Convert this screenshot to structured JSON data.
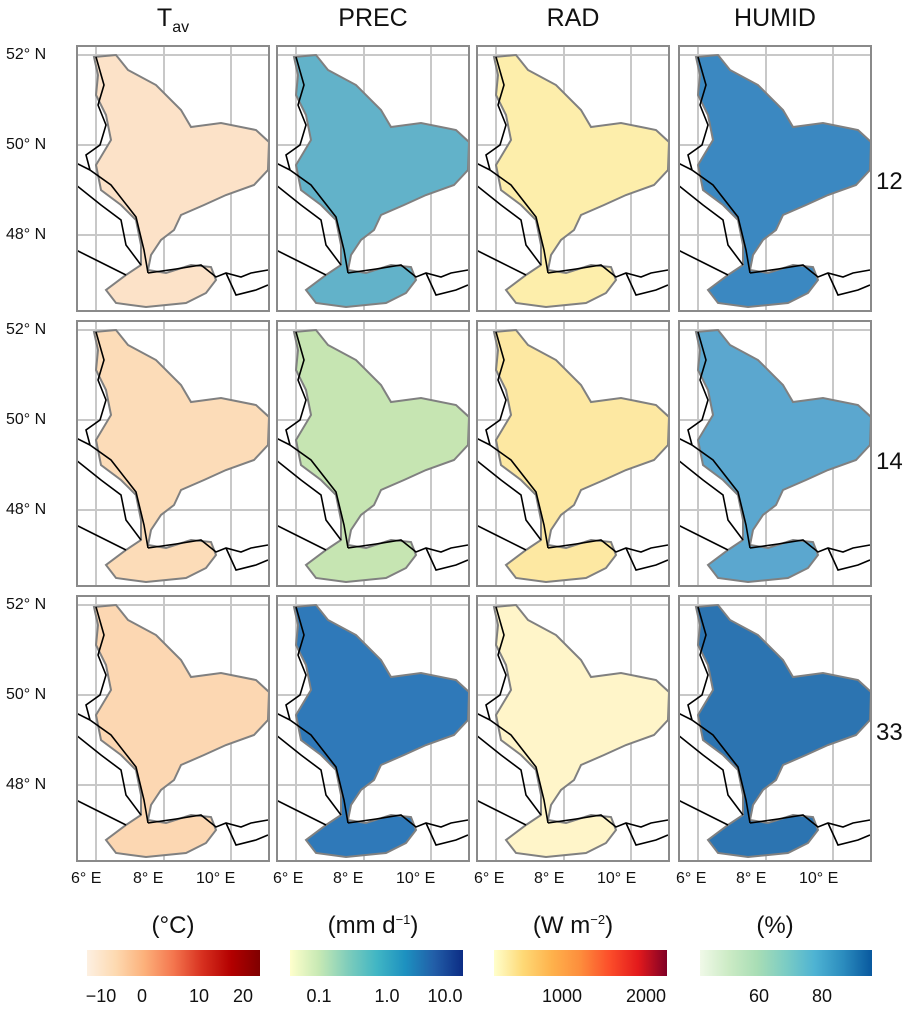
{
  "columns": [
    {
      "title": "T",
      "sub": "av",
      "unit_pre": "(°C)",
      "unit_sup": "",
      "unit_post": "",
      "gradient": [
        "#fdf0e2",
        "#fdd9b0",
        "#fcb07a",
        "#f4764e",
        "#d7301f",
        "#b30000",
        "#7f0000"
      ],
      "ticks": [
        "−10",
        "0",
        "10",
        "20"
      ]
    },
    {
      "title": "PREC",
      "sub": "",
      "unit_pre": "(mm d",
      "unit_sup": "−1",
      "unit_post": ")",
      "gradient": [
        "#ffffcc",
        "#c7e9b4",
        "#7fcdbb",
        "#41b6c4",
        "#1d91c0",
        "#225ea8",
        "#0c2c84"
      ],
      "ticks": [
        "0.1",
        "1.0",
        "10.0"
      ]
    },
    {
      "title": "RAD",
      "sub": "",
      "unit_pre": "(W m",
      "unit_sup": "−2",
      "unit_post": ")",
      "gradient": [
        "#ffffcc",
        "#fed976",
        "#feb24c",
        "#fd8d3c",
        "#fc4e2a",
        "#e31a1c",
        "#800026"
      ],
      "ticks": [
        "1000",
        "2000"
      ]
    },
    {
      "title": "HUMID",
      "sub": "",
      "unit_pre": "(%)",
      "unit_sup": "",
      "unit_post": "",
      "gradient": [
        "#f0f9e8",
        "#ccebc5",
        "#a8ddb5",
        "#7bccc4",
        "#4eb3d3",
        "#2b8cbe",
        "#08589e"
      ],
      "ticks": [
        "60",
        "80"
      ]
    }
  ],
  "rows": [
    {
      "label": "12",
      "fills": [
        "#fce2c8",
        "#62b2c9",
        "#fdeeab",
        "#3b88c1"
      ]
    },
    {
      "label": "14",
      "fills": [
        "#fcdcb8",
        "#c6e5b2",
        "#fde8a2",
        "#5ba7cf"
      ]
    },
    {
      "label": "33",
      "fills": [
        "#fcd7b2",
        "#2f79b9",
        "#fff5c9",
        "#2c74b1"
      ]
    }
  ],
  "lat_labels": [
    "52° N",
    "50° N",
    "48° N"
  ],
  "lon_labels": [
    "6° E",
    "8° E",
    "10° E"
  ]
}
